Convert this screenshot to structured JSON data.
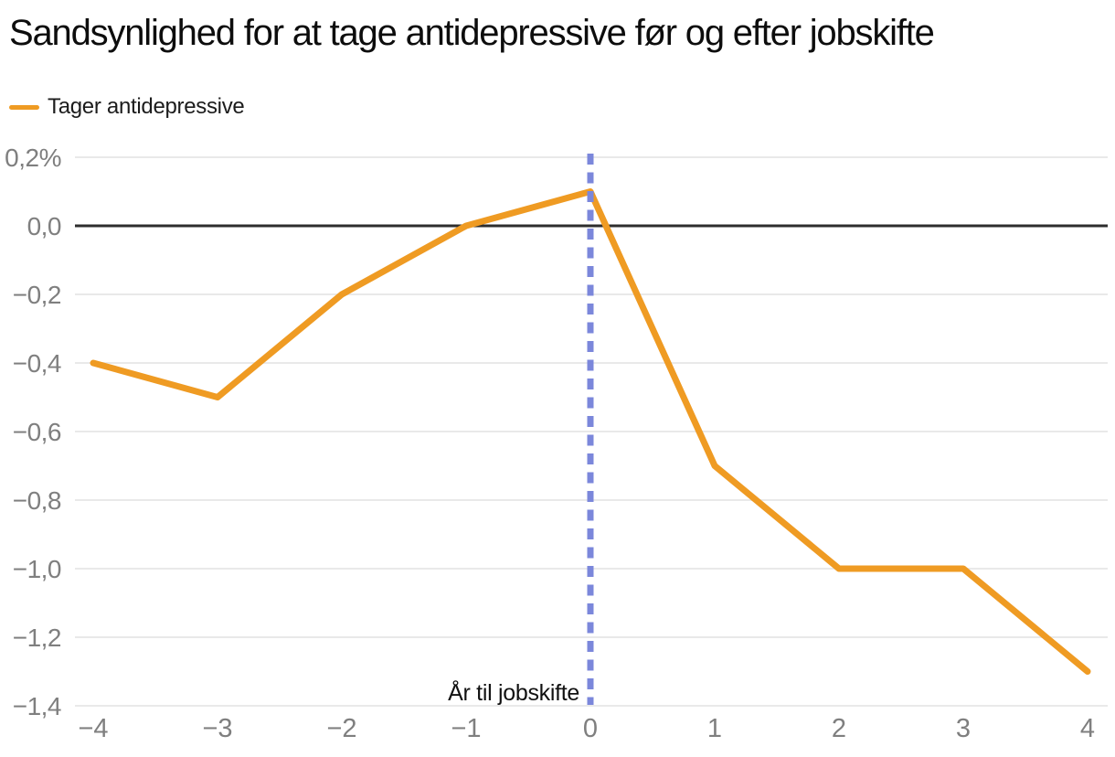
{
  "title": "Sandsynlighed for at tage antidepressive før og efter jobskifte",
  "legend": {
    "label": "Tager antidepressive"
  },
  "annotation": "År til jobskifte",
  "colors": {
    "line": "#EF9B23",
    "event_line": "#7B87DB",
    "grid": "#E9E9E9",
    "zero_line": "#2D2D2D",
    "tick_text": "#7F7F7F",
    "annotation_text": "#111111",
    "title_text": "#0D0D0D",
    "legend_text": "#1C1C1C",
    "background": "#FFFFFF"
  },
  "chart_data": {
    "type": "line",
    "title": "Sandsynlighed for at tage antidepressive før og efter jobskifte",
    "xlabel": "",
    "ylabel": "",
    "unit": "%",
    "x": [
      -4,
      -3,
      -2,
      -1,
      0,
      1,
      2,
      3,
      4
    ],
    "series": [
      {
        "name": "Tager antidepressive",
        "values": [
          -0.4,
          -0.5,
          -0.2,
          0.0,
          0.1,
          -0.7,
          -1.0,
          -1.0,
          -1.3
        ]
      }
    ],
    "xlim": [
      -4,
      4
    ],
    "ylim": [
      -1.4,
      0.2
    ],
    "xticks": {
      "values": [
        -4,
        -3,
        -2,
        -1,
        0,
        1,
        2,
        3,
        4
      ],
      "labels": [
        "−4",
        "−3",
        "−2",
        "−1",
        "0",
        "1",
        "2",
        "3",
        "4"
      ]
    },
    "yticks": {
      "values": [
        0.2,
        0.0,
        -0.2,
        -0.4,
        -0.6,
        -0.8,
        -1.0,
        -1.2,
        -1.4
      ],
      "labels": [
        "0,2%",
        "0,0",
        "−0,2",
        "−0,4",
        "−0,6",
        "−0,8",
        "−1,0",
        "−1,2",
        "−1,4"
      ]
    },
    "event_line_x": 0,
    "event_line_label": "År til jobskifte",
    "grid": true,
    "legend_position": "top-left"
  }
}
